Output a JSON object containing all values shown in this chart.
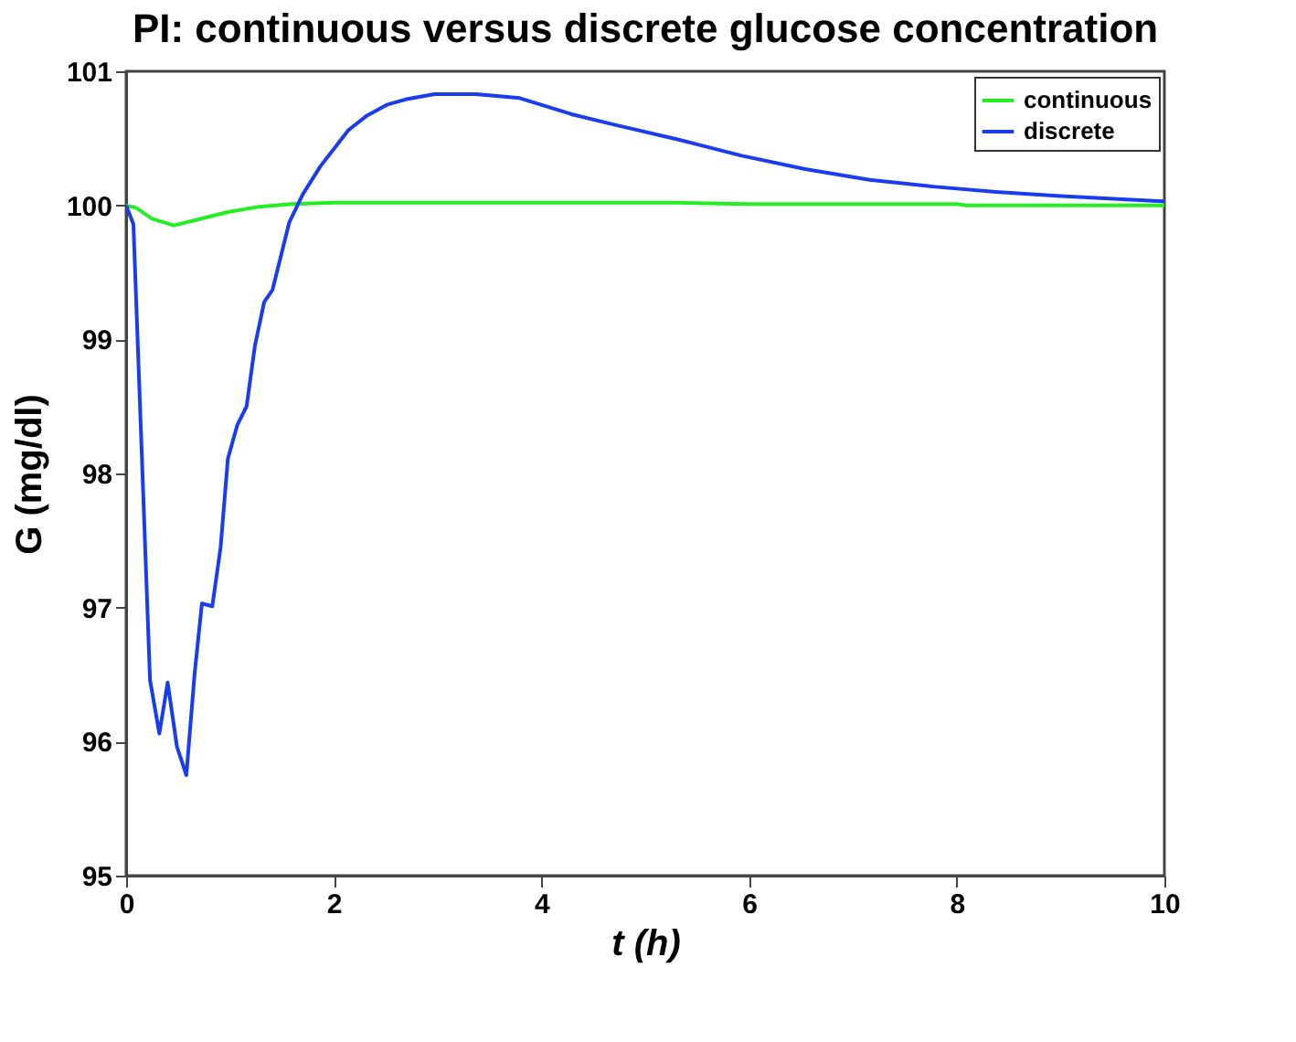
{
  "chart_data": {
    "type": "line",
    "title": "PI: continuous versus discrete glucose concentration",
    "xlabel": "t (h)",
    "ylabel": "G (mg/dl)",
    "xlim": [
      0,
      10
    ],
    "ylim": [
      95,
      101
    ],
    "xticks": [
      0,
      2,
      4,
      6,
      8,
      10
    ],
    "yticks": [
      95,
      96,
      97,
      98,
      99,
      100,
      101
    ],
    "grid": false,
    "legend": "top right",
    "line_style": "solid",
    "marker": "none",
    "series": [
      {
        "name": "continuous",
        "color": "#22ee22",
        "x": [
          0,
          0.1,
          0.25,
          0.46,
          0.67,
          0.98,
          1.28,
          1.59,
          2,
          4,
          5.3,
          6,
          8,
          8.1,
          10
        ],
        "values": [
          100,
          99.98,
          99.9,
          99.85,
          99.89,
          99.95,
          99.99,
          100.01,
          100.02,
          100.02,
          100.02,
          100.01,
          100.01,
          100,
          100
        ]
      },
      {
        "name": "discrete",
        "color": "#1a3cf0",
        "x": [
          0,
          0.07,
          0.23,
          0.32,
          0.4,
          0.49,
          0.58,
          0.66,
          0.73,
          0.83,
          0.91,
          0.98,
          1.07,
          1.16,
          1.24,
          1.33,
          1.41,
          1.57,
          1.7,
          1.87,
          1.99,
          2.14,
          2.32,
          2.51,
          2.69,
          2.97,
          3.37,
          3.79,
          4.29,
          4.71,
          5.32,
          5.93,
          6.54,
          7.16,
          7.77,
          8.38,
          9.0,
          10
        ],
        "values": [
          100,
          99.86,
          96.46,
          96.06,
          96.44,
          95.96,
          95.75,
          96.51,
          97.03,
          97.01,
          97.45,
          98.11,
          98.36,
          98.5,
          98.95,
          99.28,
          99.37,
          99.87,
          100.08,
          100.29,
          100.41,
          100.56,
          100.67,
          100.75,
          100.79,
          100.83,
          100.83,
          100.8,
          100.68,
          100.6,
          100.49,
          100.37,
          100.27,
          100.19,
          100.14,
          100.1,
          100.07,
          100.03
        ]
      }
    ]
  }
}
